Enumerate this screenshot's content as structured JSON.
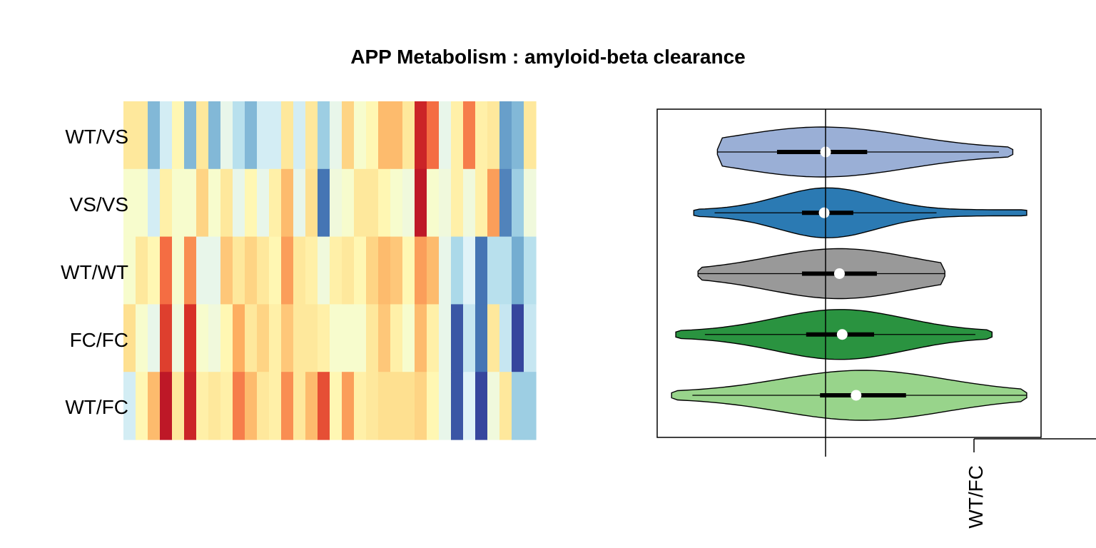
{
  "chart_data": [
    {
      "type": "heatmap",
      "title": "APP Metabolism : amyloid-beta clearance",
      "rows": [
        "WT/VS",
        "VS/VS",
        "WT/WT",
        "FC/FC",
        "WT/FC"
      ],
      "n_columns": 34,
      "value_range": [
        -1,
        1
      ],
      "palette": [
        "#313695",
        "#4575b4",
        "#74add1",
        "#abd9e9",
        "#e0f3f8",
        "#ffffbf",
        "#fee090",
        "#fdae61",
        "#f46d43",
        "#d73027",
        "#a50026"
      ],
      "values": [
        [
          0.15,
          0.15,
          -0.55,
          -0.25,
          0.05,
          -0.55,
          0.15,
          -0.55,
          -0.15,
          -0.35,
          -0.55,
          -0.25,
          -0.25,
          0.15,
          -0.25,
          0.15,
          -0.45,
          -0.15,
          0.25,
          -0.05,
          0.05,
          0.35,
          0.35,
          0.15,
          0.85,
          0.6,
          -0.15,
          0.1,
          0.55,
          0.1,
          0.15,
          -0.65,
          -0.55,
          0.15
        ],
        [
          -0.05,
          -0.05,
          -0.25,
          0.1,
          -0.05,
          -0.05,
          0.25,
          -0.05,
          0.15,
          -0.15,
          0.05,
          -0.15,
          0.1,
          0.35,
          -0.15,
          0.2,
          -0.8,
          -0.1,
          -0.05,
          0.15,
          0.15,
          0.05,
          -0.05,
          -0.1,
          0.9,
          -0.05,
          -0.1,
          0.1,
          -0.1,
          0.1,
          0.45,
          -0.75,
          -0.45,
          -0.1
        ],
        [
          -0.05,
          0.15,
          0.05,
          0.6,
          -0.05,
          0.5,
          -0.15,
          -0.15,
          0.3,
          0.15,
          0.25,
          0.15,
          0.05,
          0.45,
          0.15,
          0.1,
          -0.1,
          0.1,
          0.15,
          0.05,
          0.25,
          0.35,
          0.3,
          0.05,
          0.45,
          0.35,
          -0.15,
          -0.4,
          -0.2,
          -0.8,
          -0.35,
          -0.35,
          -0.6,
          -0.35
        ],
        [
          0.2,
          -0.05,
          -0.15,
          0.75,
          -0.1,
          0.8,
          -0.05,
          -0.1,
          0.05,
          0.4,
          0.15,
          0.25,
          0.1,
          0.3,
          0.15,
          0.15,
          0.1,
          -0.05,
          -0.05,
          -0.05,
          0.15,
          0.3,
          0.1,
          -0.05,
          0.35,
          0.1,
          -0.15,
          -0.9,
          -0.3,
          -0.8,
          0.15,
          -0.3,
          -0.95,
          -0.3
        ],
        [
          -0.25,
          0.05,
          0.35,
          0.9,
          0.15,
          0.85,
          0.1,
          0.15,
          0.1,
          0.55,
          0.35,
          0.15,
          0.1,
          0.5,
          0.15,
          0.35,
          0.7,
          0.05,
          0.45,
          0.1,
          0.15,
          0.2,
          0.2,
          0.2,
          0.25,
          0.05,
          -0.15,
          -0.9,
          -0.2,
          -0.95,
          -0.1,
          0.15,
          -0.45,
          -0.45
        ]
      ]
    },
    {
      "type": "violin",
      "categories": [
        "WT/VS",
        "VS/VS",
        "WT/WT",
        "FC/FC",
        "WT/FC"
      ],
      "series": [
        {
          "name": "WT/VS",
          "color": "#9aafd6",
          "min": -0.78,
          "max": 1.35,
          "q1": -0.35,
          "median": 0.0,
          "q3": 0.3,
          "whisker_low": -0.78,
          "whisker_high": 1.25
        },
        {
          "name": "VS/VS",
          "color": "#2b7ab3",
          "min": -0.95,
          "max": 1.45,
          "q1": -0.17,
          "median": -0.01,
          "q3": 0.2,
          "whisker_low": -0.8,
          "whisker_high": 0.8
        },
        {
          "name": "WT/WT",
          "color": "#999999",
          "min": -0.92,
          "max": 0.86,
          "q1": -0.17,
          "median": 0.1,
          "q3": 0.37,
          "whisker_low": -0.92,
          "whisker_high": 0.86
        },
        {
          "name": "FC/FC",
          "color": "#2a9340",
          "min": -1.08,
          "max": 1.2,
          "q1": -0.14,
          "median": 0.12,
          "q3": 0.35,
          "whisker_low": -0.87,
          "whisker_high": 1.08
        },
        {
          "name": "WT/FC",
          "color": "#98d48b",
          "min": -1.11,
          "max": 1.45,
          "q1": -0.04,
          "median": 0.22,
          "q3": 0.58,
          "whisker_low": -0.96,
          "whisker_high": 1.45
        }
      ],
      "reference_line": 0,
      "xlim": [
        -1.22,
        1.56
      ],
      "x_tick": {
        "value": 1.07,
        "label": "WT/FC"
      }
    }
  ]
}
